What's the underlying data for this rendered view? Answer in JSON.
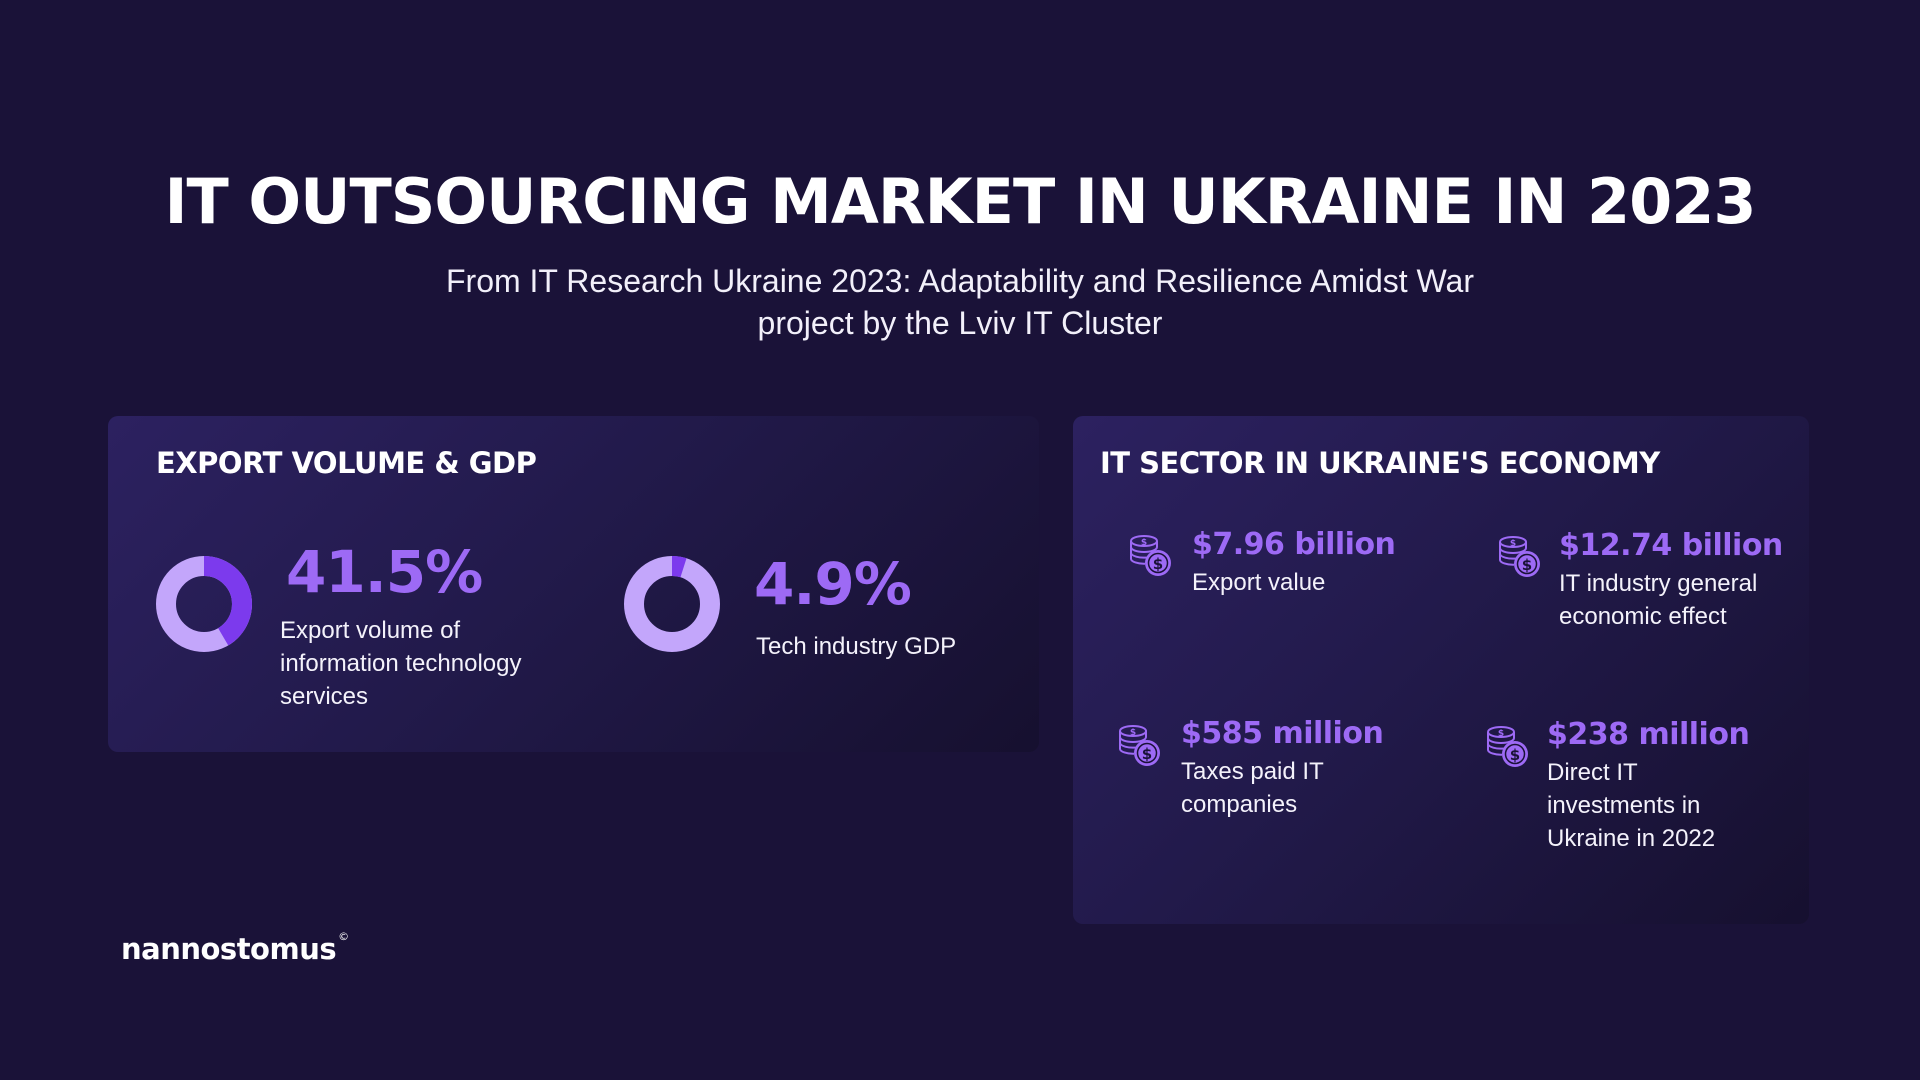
{
  "header": {
    "title": "IT OUTSOURCING MARKET IN UKRAINE IN 2023",
    "subtitle_line1": "From IT Research Ukraine 2023: Adaptability and Resilience Amidst War",
    "subtitle_line2": "project by the Lviv IT Cluster"
  },
  "export_panel": {
    "title": "EXPORT VOLUME & GDP"
  },
  "it_sector_panel": {
    "title": "IT SECTOR IN UKRAINE'S ECONOMY",
    "stats": [
      {
        "value": "$7.96 billion",
        "label": "Export value",
        "icon": "coins-dollar-icon"
      },
      {
        "value": "$12.74 billion",
        "label": "IT industry general economic effect",
        "icon": "coins-dollar-icon"
      },
      {
        "value": "$585 million",
        "label": "Taxes paid IT companies",
        "icon": "coins-dollar-icon"
      },
      {
        "value": "$238 million",
        "label": "Direct IT investments in Ukraine in 2022",
        "icon": "coins-dollar-icon"
      }
    ]
  },
  "chart_data": [
    {
      "type": "pie",
      "style": "donut",
      "value_label": "41.5%",
      "label": "Export volume of information technology services",
      "values": [
        41.5,
        58.5
      ]
    },
    {
      "type": "pie",
      "style": "donut",
      "value_label": "4.9%",
      "label": "Tech industry GDP",
      "values": [
        4.9,
        95.1
      ]
    }
  ],
  "colors": {
    "background": "#1a1238",
    "accent": "#9d6af5",
    "donut_highlight": "#7c3aed",
    "donut_base": "#c3a6fb"
  },
  "brand": {
    "logo_text": "nannostomus",
    "logo_mark": "©"
  }
}
